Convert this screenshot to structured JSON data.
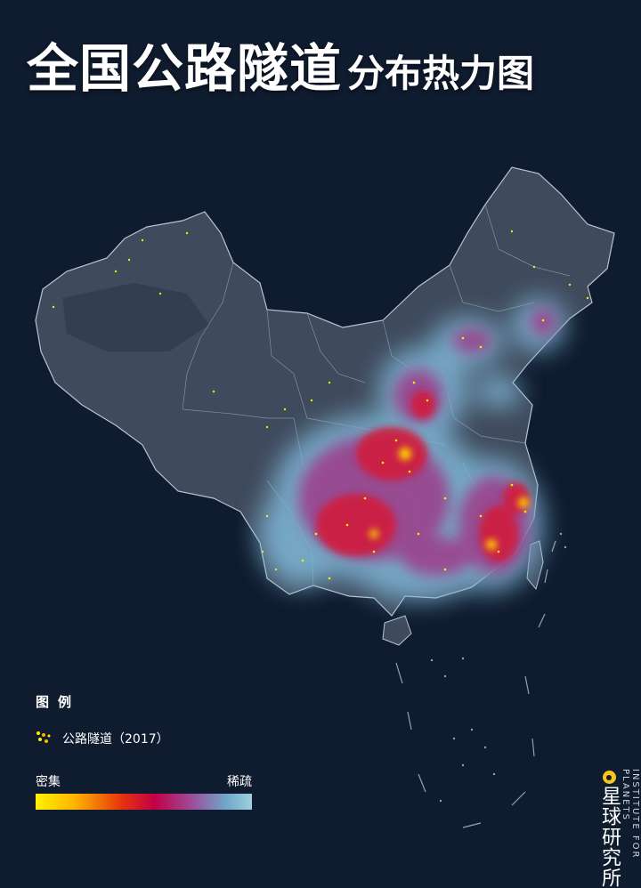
{
  "title": {
    "main": "全国公路隧道",
    "sub": "分布热力图"
  },
  "legend": {
    "heading": "图例",
    "item_label": "公路隧道（2017）",
    "ramp_dense": "密集",
    "ramp_sparse": "稀疏",
    "ramp_colors": [
      "#fff200",
      "#ffb400",
      "#e7330c",
      "#c20046",
      "#9d4b9a",
      "#6fa8c9",
      "#9ccfe0"
    ]
  },
  "brand": {
    "name": "星球研究所",
    "english": "INSTITUTE FOR PLANETS"
  },
  "colors": {
    "background": "#0f1b2e",
    "land": "#3f4a5c",
    "border": "#b8c3d2",
    "tunnel_point": "#fff200",
    "brand_accent": "#f7c51b"
  }
}
